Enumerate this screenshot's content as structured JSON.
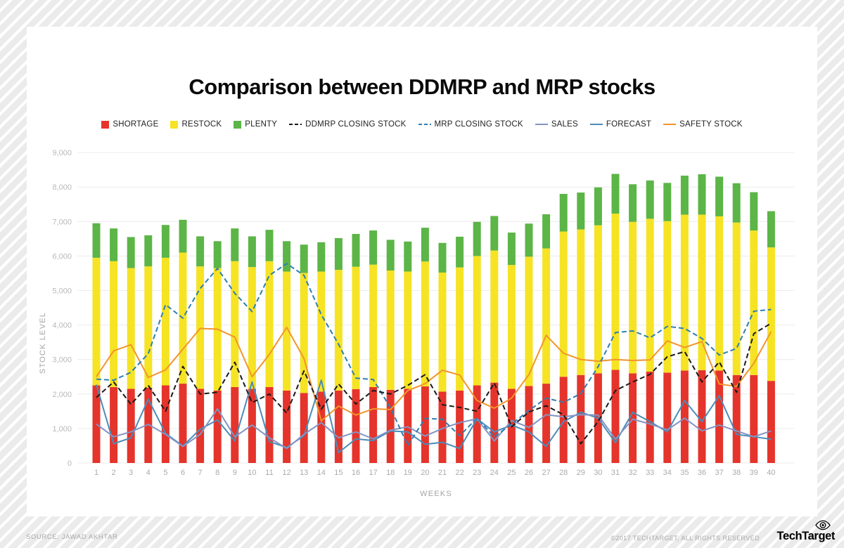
{
  "title": "Comparison between DDMRP and MRP stocks",
  "legend": [
    {
      "label": "SHORTAGE",
      "marker": "square",
      "color": "#e5342b"
    },
    {
      "label": "RESTOCK",
      "marker": "square",
      "color": "#f6e324"
    },
    {
      "label": "PLENTY",
      "marker": "square",
      "color": "#5cb547"
    },
    {
      "label": "DDMRP CLOSING STOCK",
      "marker": "dashed-line",
      "color": "#1a1a1a"
    },
    {
      "label": "MRP CLOSING STOCK",
      "marker": "dashed-line",
      "color": "#2f7fb0"
    },
    {
      "label": "SALES",
      "marker": "line",
      "color": "#8394c4"
    },
    {
      "label": "FORECAST",
      "marker": "line",
      "color": "#4b8cb9"
    },
    {
      "label": "SAFETY STOCK",
      "marker": "line",
      "color": "#f2952c"
    }
  ],
  "chart_data": {
    "type": "bar",
    "subtype": "stacked-bars-with-line-overlays",
    "xlabel": "WEEKS",
    "ylabel": "STOCK LEVEL",
    "ylim": [
      0,
      9000
    ],
    "ytick_step": 1000,
    "ytick_labels": [
      "0",
      "1,000",
      "2,000",
      "3,000",
      "4,000",
      "5,000",
      "6,000",
      "7,000",
      "8,000",
      "9,000"
    ],
    "grid": "horizontal",
    "legend_position": "top",
    "x": [
      1,
      2,
      3,
      4,
      5,
      6,
      7,
      8,
      9,
      10,
      11,
      12,
      13,
      14,
      15,
      16,
      17,
      18,
      19,
      20,
      21,
      22,
      23,
      24,
      25,
      26,
      27,
      28,
      29,
      30,
      31,
      32,
      33,
      34,
      35,
      36,
      37,
      38,
      39,
      40
    ],
    "bar_series": [
      {
        "name": "SHORTAGE",
        "color": "#e5342b",
        "stack": "stock",
        "values": [
          2250,
          2200,
          2150,
          2180,
          2250,
          2300,
          2150,
          2100,
          2200,
          2150,
          2200,
          2100,
          2030,
          2070,
          2100,
          2140,
          2200,
          2120,
          2150,
          2220,
          2070,
          2100,
          2250,
          2330,
          2150,
          2230,
          2300,
          2500,
          2550,
          2600,
          2700,
          2600,
          2650,
          2620,
          2680,
          2690,
          2680,
          2550,
          2550,
          2380
        ]
      },
      {
        "name": "RESTOCK",
        "color": "#f6e324",
        "stack": "stock",
        "values": [
          3700,
          3650,
          3500,
          3520,
          3700,
          3800,
          3550,
          3550,
          3650,
          3530,
          3650,
          3450,
          3480,
          3480,
          3500,
          3550,
          3550,
          3460,
          3400,
          3620,
          3450,
          3570,
          3750,
          3830,
          3590,
          3750,
          3920,
          4210,
          4220,
          4290,
          4530,
          4390,
          4430,
          4390,
          4520,
          4510,
          4470,
          4420,
          4190,
          3870
        ]
      },
      {
        "name": "PLENTY",
        "color": "#5cb547",
        "stack": "stock",
        "values": [
          1000,
          950,
          900,
          900,
          950,
          950,
          870,
          780,
          950,
          890,
          910,
          880,
          820,
          850,
          920,
          950,
          990,
          890,
          870,
          980,
          860,
          890,
          990,
          1000,
          940,
          960,
          990,
          1090,
          1070,
          1100,
          1150,
          1090,
          1110,
          1110,
          1130,
          1170,
          1150,
          1140,
          1110,
          1050
        ]
      }
    ],
    "line_series": [
      {
        "name": "SAFETY STOCK",
        "color": "#f2952c",
        "style": "solid",
        "values": [
          2500,
          3250,
          3430,
          2480,
          2700,
          3300,
          3900,
          3880,
          3650,
          2500,
          3150,
          3930,
          3030,
          1220,
          1650,
          1390,
          1570,
          1550,
          2100,
          2300,
          2690,
          2550,
          1810,
          1590,
          1880,
          2560,
          3700,
          3180,
          3000,
          2950,
          3000,
          2970,
          2990,
          3540,
          3350,
          3520,
          2290,
          2220,
          2890,
          3810
        ]
      },
      {
        "name": "FORECAST",
        "color": "#4b8cb9",
        "style": "solid",
        "values": [
          2270,
          560,
          730,
          1850,
          860,
          490,
          980,
          1250,
          640,
          2350,
          620,
          450,
          790,
          2400,
          300,
          700,
          650,
          930,
          900,
          540,
          600,
          420,
          1280,
          900,
          1100,
          900,
          480,
          1200,
          1470,
          1300,
          590,
          1470,
          1200,
          900,
          1810,
          1200,
          1950,
          830,
          760,
          690
        ]
      },
      {
        "name": "SALES",
        "color": "#8394c4",
        "style": "solid",
        "values": [
          1130,
          760,
          905,
          1120,
          830,
          480,
          830,
          1570,
          760,
          1100,
          730,
          420,
          830,
          1170,
          730,
          900,
          700,
          950,
          1050,
          780,
          1000,
          1170,
          1280,
          640,
          1230,
          1030,
          1400,
          1340,
          1400,
          1390,
          690,
          1270,
          1130,
          960,
          1300,
          930,
          1100,
          930,
          760,
          930
        ]
      },
      {
        "name": "MRP CLOSING STOCK",
        "color": "#2f7fb0",
        "style": "dashed",
        "values": [
          2430,
          2400,
          2630,
          3170,
          4590,
          4200,
          5060,
          5640,
          4920,
          4390,
          5440,
          5780,
          5440,
          4300,
          3440,
          2460,
          2420,
          1600,
          510,
          1290,
          1270,
          790,
          1300,
          760,
          1130,
          1520,
          1880,
          1760,
          2010,
          2790,
          3780,
          3830,
          3630,
          3960,
          3900,
          3610,
          3130,
          3320,
          4400,
          4450
        ]
      },
      {
        "name": "DDMRP CLOSING STOCK",
        "color": "#1a1a1a",
        "style": "dashed",
        "values": [
          1900,
          2350,
          1700,
          2250,
          1500,
          2800,
          2000,
          2050,
          2920,
          1750,
          2000,
          1450,
          2670,
          1560,
          2290,
          1710,
          2100,
          2000,
          2250,
          2560,
          1690,
          1610,
          1500,
          2320,
          1050,
          1480,
          1660,
          1400,
          560,
          1200,
          2100,
          2350,
          2570,
          3080,
          3230,
          2350,
          2930,
          2050,
          3750,
          4050
        ]
      }
    ]
  },
  "footer": {
    "source": "SOURCE: JAWAD AKHTAR",
    "copyright": "©2017 TECHTARGET, ALL RIGHTS RESERVED",
    "brand": "TechTarget"
  }
}
